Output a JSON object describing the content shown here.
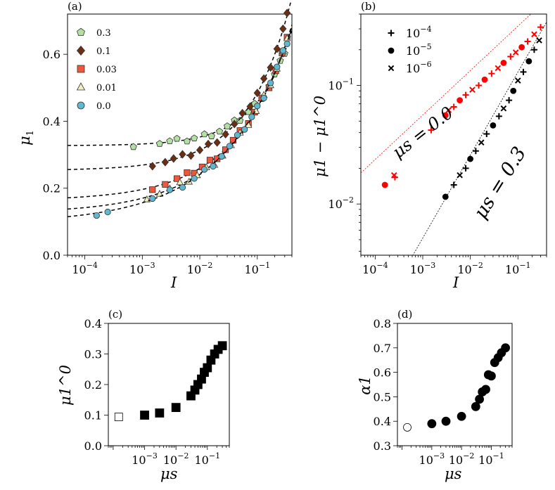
{
  "colors": {
    "s03": "#b3e0a0",
    "s01": "#6b2e12",
    "s003": "#f0563c",
    "s001": "#eeeec0",
    "s00": "#5fb7d0",
    "fit": "#000000",
    "red": "#ff0000",
    "black": "#000000"
  },
  "chart_data": [
    {
      "panel": "(a)",
      "type": "scatter",
      "xscale": "log",
      "xlabel": "I",
      "ylabel": "μ",
      "ylabel_sub": "1",
      "xlim": [
        5e-05,
        0.4
      ],
      "ylim": [
        0.0,
        0.72
      ],
      "xticks": [
        {
          "value": 0.0001,
          "base": "10",
          "exp": "−4"
        },
        {
          "value": 0.001,
          "base": "10",
          "exp": "−3"
        },
        {
          "value": 0.01,
          "base": "10",
          "exp": "−2"
        },
        {
          "value": 0.1,
          "base": "10",
          "exp": "−1"
        }
      ],
      "yticks": [
        {
          "value": 0.0,
          "label": "0.0"
        },
        {
          "value": 0.2,
          "label": "0.2"
        },
        {
          "value": 0.4,
          "label": "0.4"
        },
        {
          "value": 0.6,
          "label": "0.6"
        }
      ],
      "legend_position": "top-left",
      "series": [
        {
          "name": "0.3",
          "marker": "pentagon",
          "color_key": "s03",
          "mu0": 0.327,
          "alpha": 0.7,
          "k": 0.65,
          "x": [
            0.0007,
            0.002,
            0.003,
            0.004,
            0.006,
            0.008,
            0.012,
            0.016,
            0.022,
            0.03,
            0.04,
            0.05,
            0.07,
            0.09,
            0.12,
            0.16,
            0.2,
            0.25,
            0.3
          ]
        },
        {
          "name": "0.1",
          "marker": "diamond",
          "color_key": "s01",
          "mu0": 0.253,
          "alpha": 0.58,
          "k": 0.88,
          "x": [
            0.0015,
            0.0025,
            0.0035,
            0.005,
            0.007,
            0.01,
            0.014,
            0.02,
            0.028,
            0.04,
            0.055,
            0.075,
            0.1,
            0.13,
            0.17,
            0.22,
            0.28,
            0.33
          ]
        },
        {
          "name": "0.03",
          "marker": "square",
          "color_key": "s003",
          "mu0": 0.163,
          "alpha": 0.46,
          "k": 0.8,
          "x": [
            0.0015,
            0.0025,
            0.004,
            0.006,
            0.008,
            0.011,
            0.015,
            0.02,
            0.028,
            0.038,
            0.05,
            0.07,
            0.09,
            0.12,
            0.16,
            0.21,
            0.27,
            0.33
          ]
        },
        {
          "name": "0.01",
          "marker": "triangle",
          "color_key": "s001",
          "mu0": 0.125,
          "alpha": 0.42,
          "k": 0.82,
          "x": [
            0.0012,
            0.002,
            0.003,
            0.0045,
            0.0065,
            0.009,
            0.013,
            0.018,
            0.025,
            0.035,
            0.05,
            0.07,
            0.095,
            0.13,
            0.17,
            0.22,
            0.28,
            0.33
          ]
        },
        {
          "name": "0.0",
          "marker": "circle",
          "color_key": "s00",
          "mu0": 0.095,
          "alpha": 0.375,
          "k": 0.82,
          "x": [
            0.00016,
            0.00025,
            0.0015,
            0.003,
            0.005,
            0.008,
            0.012,
            0.017,
            0.024,
            0.033,
            0.045,
            0.06,
            0.08,
            0.1,
            0.13,
            0.17,
            0.22,
            0.28,
            0.33
          ]
        }
      ]
    },
    {
      "panel": "(b)",
      "type": "scatter",
      "xscale": "log",
      "yscale": "log",
      "xlabel": "I",
      "ylabel": "μ1 − μ1^0",
      "xlim": [
        5e-05,
        0.4
      ],
      "ylim": [
        0.0037,
        0.4
      ],
      "xticks": [
        {
          "value": 0.0001,
          "base": "10",
          "exp": "−4"
        },
        {
          "value": 0.001,
          "base": "10",
          "exp": "−3"
        },
        {
          "value": 0.01,
          "base": "10",
          "exp": "−2"
        },
        {
          "value": 0.1,
          "base": "10",
          "exp": "−1"
        }
      ],
      "yticks": [
        {
          "value": 0.01,
          "base": "10",
          "exp": "−2"
        },
        {
          "value": 0.1,
          "base": "10",
          "exp": "−1"
        }
      ],
      "legend_position": "top-left",
      "legend": [
        {
          "marker": "plus",
          "base": "10",
          "exp": "−4"
        },
        {
          "marker": "dot",
          "base": "10",
          "exp": "−5"
        },
        {
          "marker": "cross",
          "base": "10",
          "exp": "−6"
        }
      ],
      "annotations": [
        {
          "text": "μs = 0.0",
          "color_key": "red"
        },
        {
          "text": "μs = 0.3",
          "color_key": "black"
        }
      ],
      "series": [
        {
          "name": "μs = 0.0",
          "color_key": "red",
          "fit_A": 0.75,
          "fit_n": 0.375,
          "points": [
            {
              "x": 0.00016,
              "y": 0.0145,
              "m": "dot"
            },
            {
              "x": 0.00025,
              "y": 0.0175,
              "m": "cross"
            },
            {
              "x": 0.00026,
              "y": 0.0168,
              "m": "plus"
            },
            {
              "x": 0.0015,
              "y": 0.042,
              "m": "plus"
            },
            {
              "x": 0.003,
              "y": 0.056,
              "m": "dot"
            },
            {
              "x": 0.0035,
              "y": 0.062,
              "m": "cross"
            },
            {
              "x": 0.0045,
              "y": 0.066,
              "m": "plus"
            },
            {
              "x": 0.006,
              "y": 0.075,
              "m": "dot"
            },
            {
              "x": 0.008,
              "y": 0.083,
              "m": "plus"
            },
            {
              "x": 0.011,
              "y": 0.092,
              "m": "cross"
            },
            {
              "x": 0.015,
              "y": 0.1,
              "m": "plus"
            },
            {
              "x": 0.02,
              "y": 0.112,
              "m": "dot"
            },
            {
              "x": 0.028,
              "y": 0.126,
              "m": "plus"
            },
            {
              "x": 0.038,
              "y": 0.14,
              "m": "cross"
            },
            {
              "x": 0.05,
              "y": 0.155,
              "m": "dot"
            },
            {
              "x": 0.07,
              "y": 0.175,
              "m": "plus"
            },
            {
              "x": 0.09,
              "y": 0.19,
              "m": "cross"
            },
            {
              "x": 0.12,
              "y": 0.21,
              "m": "dot"
            },
            {
              "x": 0.16,
              "y": 0.235,
              "m": "plus"
            },
            {
              "x": 0.22,
              "y": 0.27,
              "m": "cross"
            },
            {
              "x": 0.3,
              "y": 0.31,
              "m": "plus"
            }
          ]
        },
        {
          "name": "μs = 0.3",
          "color_key": "black",
          "fit_A": 0.65,
          "fit_n": 0.7,
          "points": [
            {
              "x": 0.003,
              "y": 0.0115,
              "m": "dot"
            },
            {
              "x": 0.0045,
              "y": 0.0145,
              "m": "plus"
            },
            {
              "x": 0.006,
              "y": 0.0175,
              "m": "cross"
            },
            {
              "x": 0.008,
              "y": 0.02,
              "m": "plus"
            },
            {
              "x": 0.01,
              "y": 0.024,
              "m": "dot"
            },
            {
              "x": 0.013,
              "y": 0.028,
              "m": "plus"
            },
            {
              "x": 0.017,
              "y": 0.033,
              "m": "cross"
            },
            {
              "x": 0.022,
              "y": 0.039,
              "m": "plus"
            },
            {
              "x": 0.03,
              "y": 0.046,
              "m": "dot"
            },
            {
              "x": 0.04,
              "y": 0.055,
              "m": "plus"
            },
            {
              "x": 0.05,
              "y": 0.064,
              "m": "cross"
            },
            {
              "x": 0.065,
              "y": 0.075,
              "m": "plus"
            },
            {
              "x": 0.08,
              "y": 0.09,
              "m": "dot"
            },
            {
              "x": 0.1,
              "y": 0.11,
              "m": "cross"
            },
            {
              "x": 0.13,
              "y": 0.13,
              "m": "plus"
            },
            {
              "x": 0.17,
              "y": 0.16,
              "m": "dot"
            },
            {
              "x": 0.22,
              "y": 0.2,
              "m": "plus"
            },
            {
              "x": 0.28,
              "y": 0.24,
              "m": "cross"
            }
          ]
        }
      ]
    },
    {
      "panel": "(c)",
      "type": "scatter",
      "xscale": "log",
      "xlabel": "μs",
      "ylabel": "μ1^0",
      "xlim": [
        7e-05,
        0.5
      ],
      "ylim": [
        0.0,
        0.4
      ],
      "xticks": [
        {
          "value": 0.001,
          "base": "10",
          "exp": "−3"
        },
        {
          "value": 0.01,
          "base": "10",
          "exp": "−2"
        },
        {
          "value": 0.1,
          "base": "10",
          "exp": "−1"
        }
      ],
      "yticks": [
        {
          "value": 0.0,
          "label": "0.0"
        },
        {
          "value": 0.1,
          "label": "0.1"
        },
        {
          "value": 0.2,
          "label": "0.2"
        },
        {
          "value": 0.3,
          "label": "0.3"
        },
        {
          "value": 0.4,
          "label": "0.4"
        }
      ],
      "open_point": {
        "x": 0.00015,
        "y": 0.094
      },
      "points": [
        {
          "x": 0.001,
          "y": 0.1
        },
        {
          "x": 0.003,
          "y": 0.107
        },
        {
          "x": 0.01,
          "y": 0.125
        },
        {
          "x": 0.03,
          "y": 0.163
        },
        {
          "x": 0.04,
          "y": 0.182
        },
        {
          "x": 0.05,
          "y": 0.2
        },
        {
          "x": 0.065,
          "y": 0.218
        },
        {
          "x": 0.08,
          "y": 0.24
        },
        {
          "x": 0.1,
          "y": 0.255
        },
        {
          "x": 0.13,
          "y": 0.28
        },
        {
          "x": 0.17,
          "y": 0.3
        },
        {
          "x": 0.22,
          "y": 0.315
        },
        {
          "x": 0.3,
          "y": 0.327
        }
      ]
    },
    {
      "panel": "(d)",
      "type": "scatter",
      "xscale": "log",
      "xlabel": "μs",
      "ylabel": "α1",
      "xlim": [
        7e-05,
        0.5
      ],
      "ylim": [
        0.3,
        0.8
      ],
      "xticks": [
        {
          "value": 0.001,
          "base": "10",
          "exp": "−3"
        },
        {
          "value": 0.01,
          "base": "10",
          "exp": "−2"
        },
        {
          "value": 0.1,
          "base": "10",
          "exp": "−1"
        }
      ],
      "yticks": [
        {
          "value": 0.3,
          "label": "0.3"
        },
        {
          "value": 0.4,
          "label": "0.4"
        },
        {
          "value": 0.5,
          "label": "0.5"
        },
        {
          "value": 0.6,
          "label": "0.6"
        },
        {
          "value": 0.7,
          "label": "0.7"
        },
        {
          "value": 0.8,
          "label": "0.8"
        }
      ],
      "open_point": {
        "x": 0.00015,
        "y": 0.375
      },
      "points": [
        {
          "x": 0.001,
          "y": 0.39
        },
        {
          "x": 0.003,
          "y": 0.4
        },
        {
          "x": 0.01,
          "y": 0.42
        },
        {
          "x": 0.03,
          "y": 0.46
        },
        {
          "x": 0.04,
          "y": 0.49
        },
        {
          "x": 0.05,
          "y": 0.52
        },
        {
          "x": 0.065,
          "y": 0.53
        },
        {
          "x": 0.08,
          "y": 0.59
        },
        {
          "x": 0.1,
          "y": 0.585
        },
        {
          "x": 0.13,
          "y": 0.64
        },
        {
          "x": 0.17,
          "y": 0.66
        },
        {
          "x": 0.22,
          "y": 0.68
        },
        {
          "x": 0.3,
          "y": 0.7
        }
      ]
    }
  ]
}
